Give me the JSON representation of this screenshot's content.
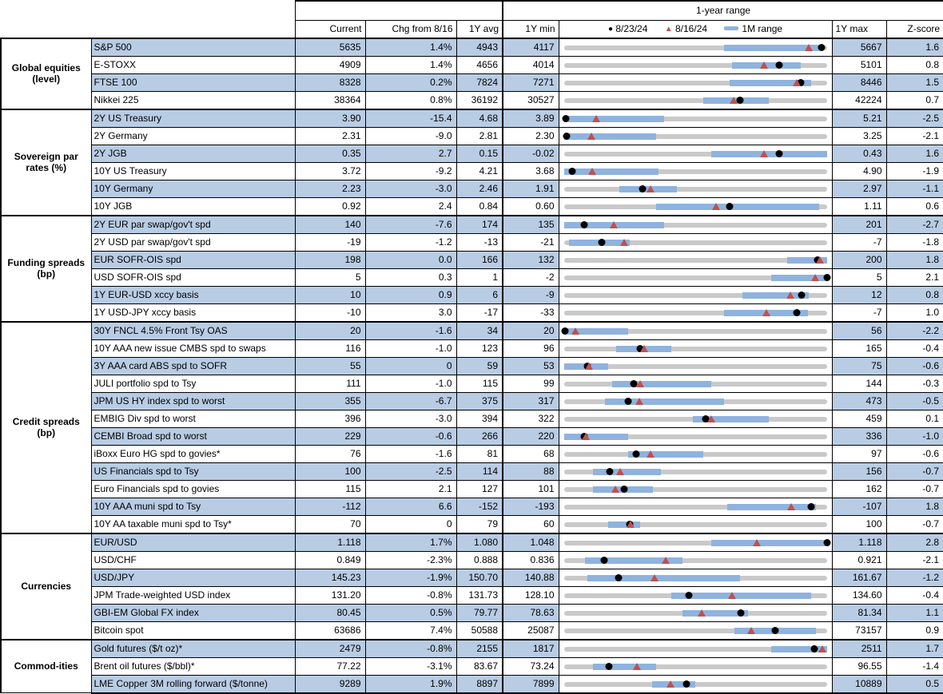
{
  "header": {
    "range_title": "1-year range",
    "columns": {
      "current": "Current",
      "chg": "Chg from 8/16",
      "avg": "1Y avg",
      "min": "1Y min",
      "max": "1Y max",
      "zscore": "Z-score"
    },
    "legend": {
      "dot": "8/23/24",
      "triangle": "8/16/24",
      "band": "1M range"
    }
  },
  "colors": {
    "row_shade": "#b8cce4",
    "track_gray": "#c9c9c9",
    "band_blue": "#8fb3de",
    "dot_black": "#000000",
    "triangle_red": "#c0504d"
  },
  "chart_data": {
    "type": "table",
    "note": "dot/tri/band are fractional positions (0-1) along each row's 1Y min-max range bar",
    "groups": [
      {
        "label": "Global equities (level)",
        "rows": [
          {
            "label": "S&P 500",
            "current": "5635",
            "chg": "1.4%",
            "avg": "4943",
            "min": "4117",
            "max": "5667",
            "z": "1.6",
            "dot": 0.98,
            "tri": 0.93,
            "band": [
              0.61,
              0.97
            ]
          },
          {
            "label": "E-STOXX",
            "current": "4909",
            "chg": "1.4%",
            "avg": "4656",
            "min": "4014",
            "max": "5101",
            "z": "0.8",
            "dot": 0.82,
            "tri": 0.76,
            "band": [
              0.64,
              0.9
            ]
          },
          {
            "label": "FTSE 100",
            "current": "8328",
            "chg": "0.2%",
            "avg": "7824",
            "min": "7271",
            "max": "8446",
            "z": "1.5",
            "dot": 0.9,
            "tri": 0.885,
            "band": [
              0.63,
              0.94
            ]
          },
          {
            "label": "Nikkei 225",
            "current": "38364",
            "chg": "0.8%",
            "avg": "36192",
            "min": "30527",
            "max": "42224",
            "z": "0.7",
            "dot": 0.67,
            "tri": 0.645,
            "band": [
              0.53,
              0.78
            ]
          }
        ]
      },
      {
        "label": "Sovereign par rates (%)",
        "rows": [
          {
            "label": "2Y US Treasury",
            "current": "3.90",
            "chg": "-15.4",
            "avg": "4.68",
            "min": "3.89",
            "max": "5.21",
            "z": "-2.5",
            "dot": 0.008,
            "tri": 0.124,
            "band": [
              0.0,
              0.38
            ]
          },
          {
            "label": "2Y Germany",
            "current": "2.31",
            "chg": "-9.0",
            "avg": "2.81",
            "min": "2.30",
            "max": "3.25",
            "z": "-2.1",
            "dot": 0.011,
            "tri": 0.105,
            "band": [
              0.0,
              0.35
            ]
          },
          {
            "label": "2Y JGB",
            "current": "0.35",
            "chg": "2.7",
            "avg": "0.15",
            "min": "-0.02",
            "max": "0.43",
            "z": "1.6",
            "dot": 0.82,
            "tri": 0.76,
            "band": [
              0.56,
              1.0
            ]
          },
          {
            "label": "10Y US Treasury",
            "current": "3.72",
            "chg": "-9.2",
            "avg": "4.21",
            "min": "3.68",
            "max": "4.90",
            "z": "-1.9",
            "dot": 0.033,
            "tri": 0.108,
            "band": [
              0.0,
              0.36
            ]
          },
          {
            "label": "10Y Germany",
            "current": "2.23",
            "chg": "-3.0",
            "avg": "2.46",
            "min": "1.91",
            "max": "2.97",
            "z": "-1.1",
            "dot": 0.3,
            "tri": 0.33,
            "band": [
              0.21,
              0.43
            ]
          },
          {
            "label": "10Y JGB",
            "current": "0.92",
            "chg": "2.4",
            "avg": "0.84",
            "min": "0.60",
            "max": "1.11",
            "z": "0.6",
            "dot": 0.63,
            "tri": 0.58,
            "band": [
              0.35,
              0.97
            ]
          }
        ]
      },
      {
        "label": "Funding spreads (bp)",
        "rows": [
          {
            "label": "2Y EUR par swap/gov't spd",
            "current": "140",
            "chg": "-7.6",
            "avg": "174",
            "min": "135",
            "max": "201",
            "z": "-2.7",
            "dot": 0.076,
            "tri": 0.19,
            "band": [
              0.0,
              0.38
            ]
          },
          {
            "label": "2Y USD par swap/gov't spd",
            "current": "-19",
            "chg": "-1.2",
            "avg": "-13",
            "min": "-21",
            "max": "-7",
            "z": "-1.8",
            "dot": 0.143,
            "tri": 0.229,
            "band": [
              0.02,
              0.25
            ]
          },
          {
            "label": "EUR SOFR-OIS spd",
            "current": "198",
            "chg": "0.0",
            "avg": "166",
            "min": "132",
            "max": "200",
            "z": "1.8",
            "dot": 0.965,
            "tri": 0.975,
            "band": [
              0.85,
              1.0
            ]
          },
          {
            "label": "USD SOFR-OIS spd",
            "current": "5",
            "chg": "0.3",
            "avg": "1",
            "min": "-2",
            "max": "5",
            "z": "2.1",
            "dot": 1.0,
            "tri": 0.957,
            "band": [
              0.79,
              1.0
            ]
          },
          {
            "label": "1Y EUR-USD xccy basis",
            "current": "10",
            "chg": "0.9",
            "avg": "6",
            "min": "-9",
            "max": "12",
            "z": "0.8",
            "dot": 0.905,
            "tri": 0.862,
            "band": [
              0.68,
              0.93
            ]
          },
          {
            "label": "1Y USD-JPY xccy basis",
            "current": "-10",
            "chg": "3.0",
            "avg": "-17",
            "min": "-33",
            "max": "-7",
            "z": "1.0",
            "dot": 0.885,
            "tri": 0.77,
            "band": [
              0.61,
              0.93
            ]
          }
        ]
      },
      {
        "label": "Credit spreads (bp)",
        "rows": [
          {
            "label": "30Y FNCL 4.5% Front Tsy OAS",
            "current": "20",
            "chg": "-1.6",
            "avg": "34",
            "min": "20",
            "max": "56",
            "z": "-2.2",
            "dot": 0.005,
            "tri": 0.044,
            "band": [
              0.0,
              0.245
            ]
          },
          {
            "label": "10Y AAA new issue CMBS spd to swaps",
            "current": "116",
            "chg": "-1.0",
            "avg": "123",
            "min": "96",
            "max": "165",
            "z": "-0.4",
            "dot": 0.29,
            "tri": 0.304,
            "band": [
              0.2,
              0.41
            ]
          },
          {
            "label": "3Y AAA card ABS spd to SOFR",
            "current": "55",
            "chg": "0",
            "avg": "59",
            "min": "53",
            "max": "75",
            "z": "-0.6",
            "dot": 0.09,
            "tri": 0.095,
            "band": [
              0.0,
              0.17
            ]
          },
          {
            "label": "JULI portfolio spd to Tsy",
            "current": "111",
            "chg": "-1.0",
            "avg": "115",
            "min": "99",
            "max": "144",
            "z": "-0.3",
            "dot": 0.267,
            "tri": 0.289,
            "band": [
              0.185,
              0.56
            ]
          },
          {
            "label": "JPM US HY index spd to worst",
            "current": "355",
            "chg": "-6.7",
            "avg": "375",
            "min": "317",
            "max": "473",
            "z": "-0.5",
            "dot": 0.244,
            "tri": 0.287,
            "band": [
              0.155,
              0.61
            ]
          },
          {
            "label": "EMBIG Div spd to worst",
            "current": "396",
            "chg": "-3.0",
            "avg": "394",
            "min": "322",
            "max": "459",
            "z": "0.1",
            "dot": 0.54,
            "tri": 0.562,
            "band": [
              0.49,
              0.78
            ]
          },
          {
            "label": "CEMBI Broad spd to worst",
            "current": "229",
            "chg": "-0.6",
            "avg": "266",
            "min": "220",
            "max": "336",
            "z": "-1.0",
            "dot": 0.078,
            "tri": 0.083,
            "band": [
              0.0,
              0.245
            ]
          },
          {
            "label": "iBoxx Euro HG spd to govies*",
            "current": "76",
            "chg": "-1.6",
            "avg": "81",
            "min": "68",
            "max": "97",
            "z": "-0.6",
            "dot": 0.276,
            "tri": 0.331,
            "band": [
              0.245,
              0.53
            ]
          },
          {
            "label": "US Financials spd to Tsy",
            "current": "100",
            "chg": "-2.5",
            "avg": "114",
            "min": "88",
            "max": "156",
            "z": "-0.7",
            "dot": 0.176,
            "tri": 0.213,
            "band": [
              0.11,
              0.37
            ]
          },
          {
            "label": "Euro Financials spd to govies",
            "current": "115",
            "chg": "2.1",
            "avg": "127",
            "min": "101",
            "max": "162",
            "z": "-0.7",
            "dot": 0.23,
            "tri": 0.195,
            "band": [
              0.11,
              0.34
            ]
          },
          {
            "label": "10Y AAA muni spd to Tsy",
            "current": "-112",
            "chg": "6.6",
            "avg": "-152",
            "min": "-193",
            "max": "-107",
            "z": "1.8",
            "dot": 0.942,
            "tri": 0.865,
            "band": [
              0.62,
              0.96
            ]
          },
          {
            "label": "10Y AA taxable muni spd to Tsy*",
            "current": "70",
            "chg": "0",
            "avg": "79",
            "min": "60",
            "max": "100",
            "z": "-0.7",
            "dot": 0.25,
            "tri": 0.255,
            "band": [
              0.17,
              0.29
            ]
          }
        ]
      },
      {
        "label": "Currencies",
        "rows": [
          {
            "label": "EUR/USD",
            "current": "1.118",
            "chg": "1.7%",
            "avg": "1.080",
            "min": "1.048",
            "max": "1.118",
            "z": "2.8",
            "dot": 1.0,
            "tri": 0.733,
            "band": [
              0.56,
              1.0
            ]
          },
          {
            "label": "USD/CHF",
            "current": "0.849",
            "chg": "-2.3%",
            "avg": "0.888",
            "min": "0.836",
            "max": "0.921",
            "z": "-2.1",
            "dot": 0.153,
            "tri": 0.388,
            "band": [
              0.08,
              0.45
            ]
          },
          {
            "label": "USD/JPY",
            "current": "145.23",
            "chg": "-1.9%",
            "avg": "150.70",
            "min": "140.88",
            "max": "161.67",
            "z": "-1.2",
            "dot": 0.209,
            "tri": 0.344,
            "band": [
              0.09,
              0.67
            ]
          },
          {
            "label": "JPM Trade-weighted USD index",
            "current": "131.20",
            "chg": "-0.8%",
            "avg": "131.73",
            "min": "128.10",
            "max": "134.60",
            "z": "-0.4",
            "dot": 0.477,
            "tri": 0.64,
            "band": [
              0.41,
              0.94
            ]
          },
          {
            "label": "GBI-EM Global FX index",
            "current": "80.45",
            "chg": "0.5%",
            "avg": "79.77",
            "min": "78.63",
            "max": "81.34",
            "z": "1.1",
            "dot": 0.672,
            "tri": 0.524,
            "band": [
              0.45,
              0.7
            ]
          },
          {
            "label": "Bitcoin spot",
            "current": "63686",
            "chg": "7.4%",
            "avg": "50588",
            "min": "25087",
            "max": "73157",
            "z": "0.9",
            "dot": 0.803,
            "tri": 0.712,
            "band": [
              0.65,
              0.96
            ]
          }
        ]
      },
      {
        "label": "Commod-ities",
        "rows": [
          {
            "label": "Gold futures ($/t oz)*",
            "current": "2479",
            "chg": "-0.8%",
            "avg": "2155",
            "min": "1817",
            "max": "2511",
            "z": "1.7",
            "dot": 0.954,
            "tri": 0.983,
            "band": [
              0.79,
              1.0
            ]
          },
          {
            "label": "Brent oil futures ($/bbl)*",
            "current": "77.22",
            "chg": "-3.1%",
            "avg": "83.67",
            "min": "73.24",
            "max": "96.55",
            "z": "-1.4",
            "dot": 0.171,
            "tri": 0.277,
            "band": [
              0.11,
              0.35
            ]
          },
          {
            "label": "LME Copper 3M rolling forward ($/tonne)",
            "current": "9289",
            "chg": "1.9%",
            "avg": "8897",
            "min": "7899",
            "max": "10889",
            "z": "0.5",
            "dot": 0.465,
            "tri": 0.407,
            "band": [
              0.335,
              0.5
            ]
          }
        ]
      }
    ]
  }
}
